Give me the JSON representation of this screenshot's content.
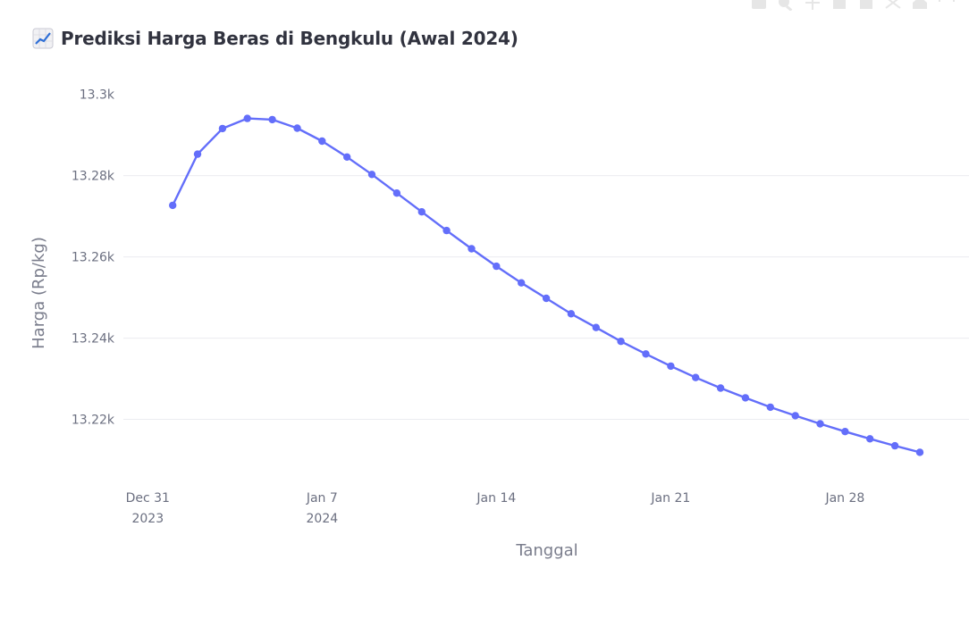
{
  "page": {
    "title": "Prediksi Harga Beras di Bengkulu (Awal 2024)",
    "title_icon": "chart-increasing-icon"
  },
  "modebar": {
    "icons": [
      "camera-icon",
      "zoom-icon",
      "pan-icon",
      "zoom-in-icon",
      "zoom-out-icon",
      "autoscale-icon",
      "reset-axes-icon",
      "fullscreen-icon"
    ]
  },
  "chart_data": {
    "type": "line",
    "title": "Prediksi Harga Beras di Bengkulu (Awal 2024)",
    "xlabel": "Tanggal",
    "ylabel": "Harga (Rp/kg)",
    "x_start": "2024-01-01",
    "x": [
      "2024-01-01",
      "2024-01-02",
      "2024-01-03",
      "2024-01-04",
      "2024-01-05",
      "2024-01-06",
      "2024-01-07",
      "2024-01-08",
      "2024-01-09",
      "2024-01-10",
      "2024-01-11",
      "2024-01-12",
      "2024-01-13",
      "2024-01-14",
      "2024-01-15",
      "2024-01-16",
      "2024-01-17",
      "2024-01-18",
      "2024-01-19",
      "2024-01-20",
      "2024-01-21",
      "2024-01-22",
      "2024-01-23",
      "2024-01-24",
      "2024-01-25",
      "2024-01-26",
      "2024-01-27",
      "2024-01-28",
      "2024-01-29",
      "2024-01-30",
      "2024-01-31"
    ],
    "series": [
      {
        "name": "",
        "color": "#636efa",
        "values": [
          13272.7,
          13285.3,
          13291.6,
          13294.1,
          13293.8,
          13291.7,
          13288.5,
          13284.6,
          13280.3,
          13275.7,
          13271.1,
          13266.5,
          13262.0,
          13257.7,
          13253.6,
          13249.8,
          13246.0,
          13242.6,
          13239.2,
          13236.1,
          13233.1,
          13230.3,
          13227.7,
          13225.3,
          13223.0,
          13220.9,
          13218.9,
          13217.0,
          13215.2,
          13213.5,
          13211.9
        ]
      }
    ],
    "ylim": [
      13204.5,
      13305
    ],
    "y_ticks": [
      13220,
      13240,
      13260,
      13280,
      13300
    ],
    "y_tick_labels": [
      "13.22k",
      "13.24k",
      "13.26k",
      "13.28k",
      "13.3k"
    ],
    "x_ticks": [
      "2023-12-31",
      "2024-01-07",
      "2024-01-14",
      "2024-01-21",
      "2024-01-28"
    ],
    "x_tick_labels": [
      [
        "Dec 31",
        "2023"
      ],
      [
        "Jan 7",
        "2024"
      ],
      [
        "Jan 14"
      ],
      [
        "Jan 21"
      ],
      [
        "Jan 28"
      ]
    ],
    "grid": true
  }
}
